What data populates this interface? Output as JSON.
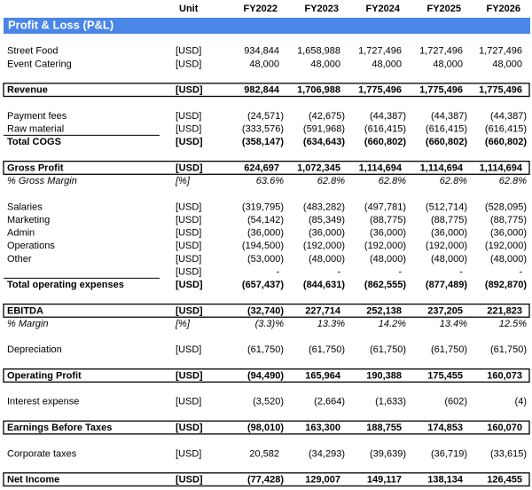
{
  "header": {
    "unit": "Unit",
    "years": [
      "FY2022",
      "FY2023",
      "FY2024",
      "FY2025",
      "FY2026"
    ]
  },
  "title": "Profit & Loss (P&L)",
  "rows": [
    {
      "label": "Street Food",
      "unit": "[USD]",
      "values": [
        "934,844",
        "1,658,988",
        "1,727,496",
        "1,727,496",
        "1,727,496"
      ]
    },
    {
      "label": "Event Catering",
      "unit": "[USD]",
      "values": [
        "48,000",
        "48,000",
        "48,000",
        "48,000",
        "48,000"
      ]
    },
    {
      "label": "Revenue",
      "unit": "[USD]",
      "style": "boxed",
      "values": [
        "982,844",
        "1,706,988",
        "1,775,496",
        "1,775,496",
        "1,775,496"
      ]
    },
    {
      "label": "Payment fees",
      "unit": "[USD]",
      "values": [
        "(24,571)",
        "(42,675)",
        "(44,387)",
        "(44,387)",
        "(44,387)"
      ]
    },
    {
      "label": "Raw material",
      "unit": "[USD]",
      "values": [
        "(333,576)",
        "(591,968)",
        "(616,415)",
        "(616,415)",
        "(616,415)"
      ]
    },
    {
      "label": "Total COGS",
      "unit": "[USD]",
      "style": "total",
      "values": [
        "(358,147)",
        "(634,643)",
        "(660,802)",
        "(660,802)",
        "(660,802)"
      ]
    },
    {
      "label": "Gross Profit",
      "unit": "[USD]",
      "style": "boxed",
      "values": [
        "624,697",
        "1,072,345",
        "1,114,694",
        "1,114,694",
        "1,114,694"
      ]
    },
    {
      "label": "% Gross Margin",
      "unit": "[%]",
      "style": "italic",
      "values": [
        "63.6%",
        "62.8%",
        "62.8%",
        "62.8%",
        "62.8%"
      ]
    },
    {
      "label": "Salaries",
      "unit": "[USD]",
      "values": [
        "(319,795)",
        "(483,282)",
        "(497,781)",
        "(512,714)",
        "(528,095)"
      ]
    },
    {
      "label": "Marketing",
      "unit": "[USD]",
      "values": [
        "(54,142)",
        "(85,349)",
        "(88,775)",
        "(88,775)",
        "(88,775)"
      ]
    },
    {
      "label": "Admin",
      "unit": "[USD]",
      "values": [
        "(36,000)",
        "(36,000)",
        "(36,000)",
        "(36,000)",
        "(36,000)"
      ]
    },
    {
      "label": "Operations",
      "unit": "[USD]",
      "values": [
        "(194,500)",
        "(192,000)",
        "(192,000)",
        "(192,000)",
        "(192,000)"
      ]
    },
    {
      "label": "Other",
      "unit": "[USD]",
      "values": [
        "(53,000)",
        "(48,000)",
        "(48,000)",
        "(48,000)",
        "(48,000)"
      ]
    },
    {
      "unit": "[USD]",
      "values": [
        "-",
        "-",
        "-",
        "-",
        "-"
      ]
    },
    {
      "label": "Total operating expenses",
      "unit": "[USD]",
      "style": "total",
      "values": [
        "(657,437)",
        "(844,631)",
        "(862,555)",
        "(877,489)",
        "(892,870)"
      ]
    },
    {
      "label": "EBITDA",
      "unit": "[USD]",
      "style": "boxed",
      "values": [
        "(32,740)",
        "227,714",
        "252,138",
        "237,205",
        "221,823"
      ]
    },
    {
      "label": "% Margin",
      "unit": "[%]",
      "style": "italic",
      "values": [
        "(3.3)%",
        "13.3%",
        "14.2%",
        "13.4%",
        "12.5%"
      ]
    },
    {
      "label": "Depreciation",
      "unit": "[USD]",
      "values": [
        "(61,750)",
        "(61,750)",
        "(61,750)",
        "(61,750)",
        "(61,750)"
      ]
    },
    {
      "label": "Operating Profit",
      "unit": "[USD]",
      "style": "boxed",
      "values": [
        "(94,490)",
        "165,964",
        "190,388",
        "175,455",
        "160,073"
      ]
    },
    {
      "label": "Interest expense",
      "unit": "[USD]",
      "values": [
        "(3,520)",
        "(2,664)",
        "(1,633)",
        "(602)",
        "(4)"
      ]
    },
    {
      "label": "Earnings Before Taxes",
      "unit": "[USD]",
      "style": "boxed",
      "values": [
        "(98,010)",
        "163,300",
        "188,755",
        "174,853",
        "160,070"
      ]
    },
    {
      "label": "Corporate taxes",
      "unit": "[USD]",
      "values": [
        "20,582",
        "(34,293)",
        "(39,639)",
        "(36,719)",
        "(33,615)"
      ]
    },
    {
      "label": "Net Income",
      "unit": "[USD]",
      "style": "boxed",
      "values": [
        "(77,428)",
        "129,007",
        "149,117",
        "138,134",
        "126,455"
      ]
    }
  ]
}
